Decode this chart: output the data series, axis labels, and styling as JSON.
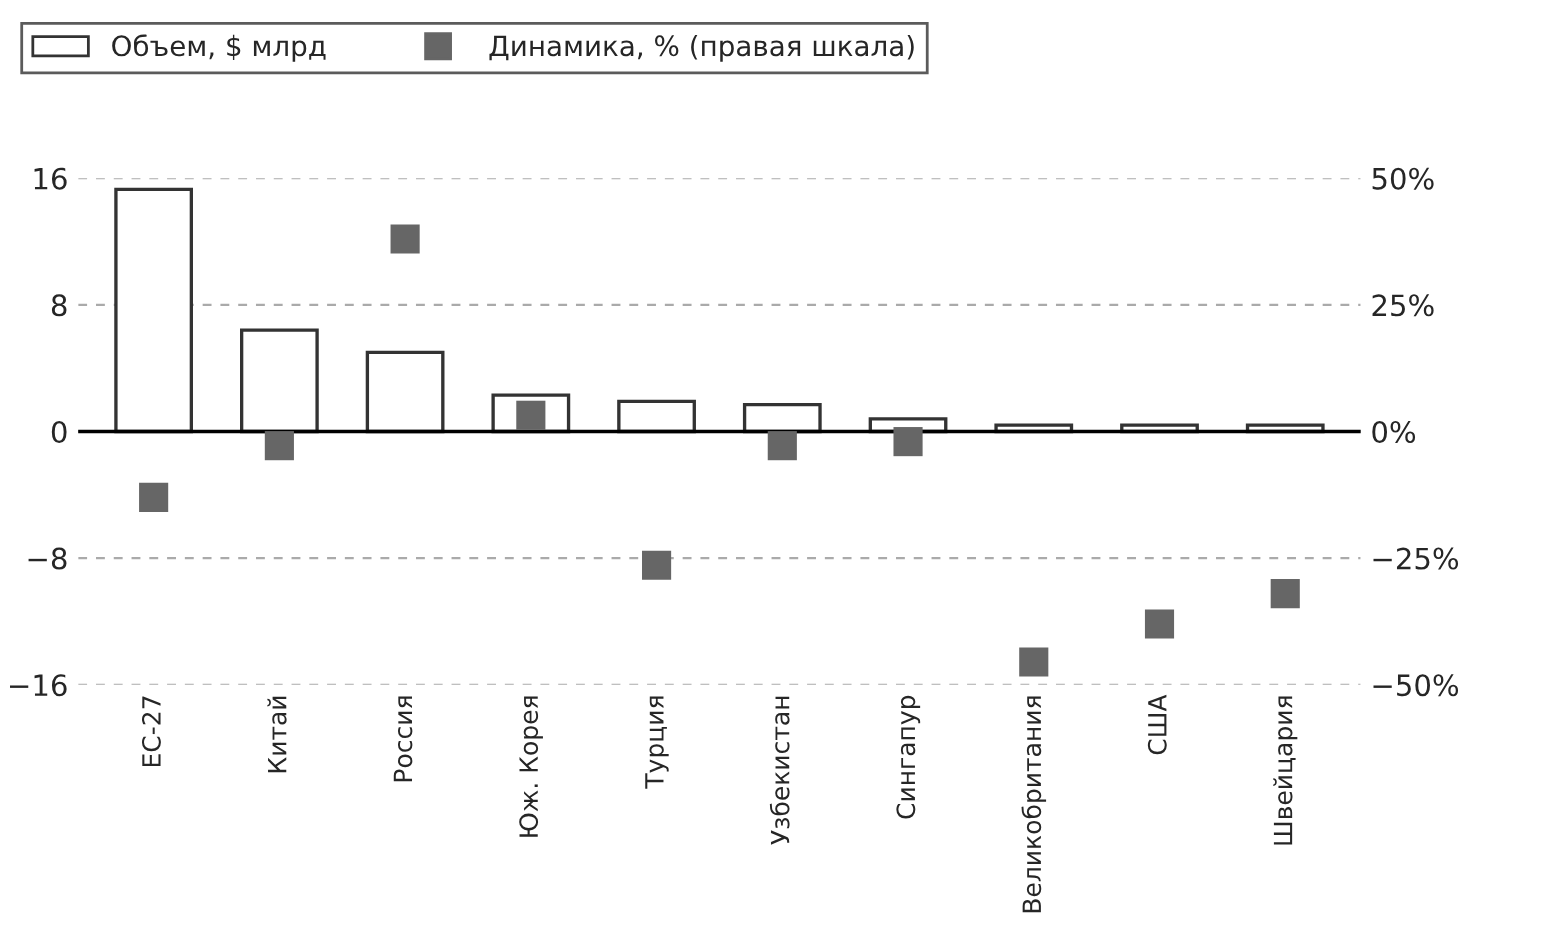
{
  "chart_data": {
    "type": "bar",
    "categories": [
      "ЕС-27",
      "Китай",
      "Россия",
      "Юж. Корея",
      "Турция",
      "Узбекистан",
      "Сингапур",
      "Великобритания",
      "США",
      "Швейцария"
    ],
    "series": [
      {
        "name": "Объем, $ млрд",
        "color": "#ffffff",
        "values": [
          15.3,
          6.4,
          5.0,
          2.3,
          1.9,
          1.7,
          0.8,
          0.4,
          0.4,
          0.4
        ]
      },
      {
        "name": "Динамика, % (правая шкала)",
        "type": "scatter",
        "axis": "y2",
        "color": "#666666",
        "marker": "square",
        "values": [
          -13,
          -2.8,
          38,
          3.2,
          -26.4,
          -2.8,
          -2,
          -45.5,
          -38,
          -32
        ]
      }
    ],
    "ylim": [
      -16,
      16
    ],
    "yticks": [
      {
        "value": -16,
        "label": "−16"
      },
      {
        "value": -8,
        "label": "−8"
      },
      0,
      8,
      16
    ],
    "y2lim": [
      -50,
      50
    ],
    "y2ticks": [
      {
        "value": -50,
        "label": "−50%"
      },
      {
        "value": -25,
        "label": "−25%"
      },
      {
        "value": 0,
        "label": "0%"
      },
      {
        "value": 25,
        "label": "25%"
      },
      {
        "value": 50,
        "label": "50%"
      }
    ],
    "ref_lines": [
      {
        "axis": "y",
        "value": 0,
        "color": "#000000"
      }
    ],
    "grid": "y",
    "legend": "top left"
  }
}
